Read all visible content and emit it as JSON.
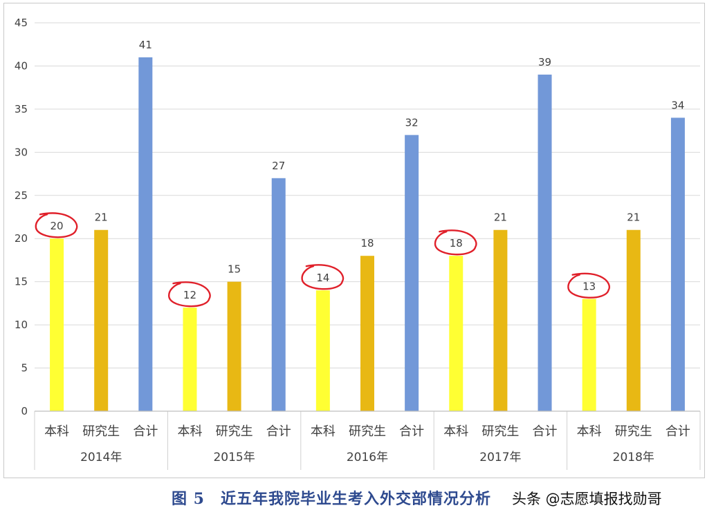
{
  "chart_data": {
    "type": "bar",
    "groups": [
      "2014年",
      "2015年",
      "2016年",
      "2017年",
      "2018年"
    ],
    "categories": [
      "本科",
      "研究生",
      "合计"
    ],
    "series_colors": [
      "#ffff33",
      "#e8b814",
      "#7298d8"
    ],
    "values": [
      [
        20,
        21,
        41
      ],
      [
        12,
        15,
        27
      ],
      [
        14,
        18,
        32
      ],
      [
        18,
        21,
        39
      ],
      [
        13,
        21,
        34
      ]
    ],
    "ylim": [
      0,
      45
    ],
    "yticks": [
      "0",
      "5",
      "10",
      "15",
      "20",
      "25",
      "30",
      "35",
      "40",
      "45"
    ],
    "grid": true,
    "annotation_color": "#e0202a",
    "circled": "本科 values circled in red"
  },
  "caption": {
    "title": "图 5　近五年我院毕业生考入外交部情况分析",
    "watermark": "头条 @志愿填报找勋哥"
  }
}
